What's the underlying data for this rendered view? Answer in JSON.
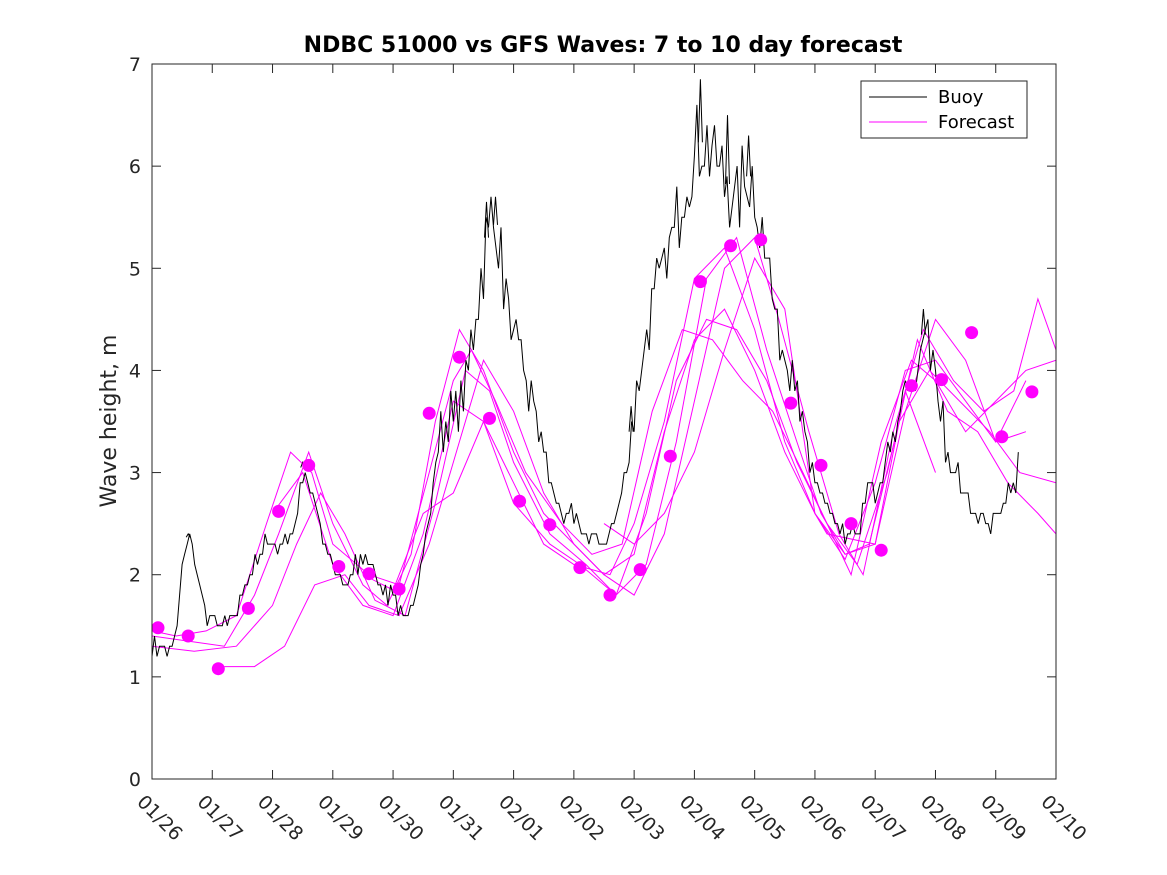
{
  "chart_data": {
    "type": "line",
    "title": "NDBC 51000 vs GFS Waves: 7 to 10 day forecast",
    "xlabel": "",
    "ylabel": "Wave height, m",
    "x_tick_labels": [
      "01/26",
      "01/27",
      "01/28",
      "01/29",
      "01/30",
      "01/31",
      "02/01",
      "02/02",
      "02/03",
      "02/04",
      "02/05",
      "02/06",
      "02/07",
      "02/08",
      "02/09",
      "02/10"
    ],
    "xlim_days": [
      0,
      15
    ],
    "ylim": [
      0,
      7
    ],
    "y_ticks": [
      0,
      1,
      2,
      3,
      4,
      5,
      6,
      7
    ],
    "legend": [
      "Buoy",
      "Forecast"
    ],
    "legend_position": "top-right",
    "colors": {
      "buoy": "#000000",
      "forecast": "#ff00ff"
    },
    "buoy_anchors": [
      [
        0.0,
        1.3
      ],
      [
        0.15,
        1.3
      ],
      [
        0.3,
        1.25
      ],
      [
        0.4,
        1.35
      ],
      [
        0.5,
        2.1
      ],
      [
        0.58,
        2.4
      ],
      [
        0.7,
        2.2
      ],
      [
        0.8,
        1.8
      ],
      [
        0.9,
        1.6
      ],
      [
        1.0,
        1.6
      ],
      [
        1.1,
        1.45
      ],
      [
        1.2,
        1.55
      ],
      [
        1.35,
        1.6
      ],
      [
        1.5,
        1.8
      ],
      [
        1.7,
        2.1
      ],
      [
        1.9,
        2.35
      ],
      [
        2.0,
        2.3
      ],
      [
        2.1,
        2.3
      ],
      [
        2.2,
        2.25
      ],
      [
        2.4,
        2.6
      ],
      [
        2.5,
        3.05
      ],
      [
        2.65,
        2.8
      ],
      [
        2.8,
        2.4
      ],
      [
        3.0,
        2.05
      ],
      [
        3.2,
        1.9
      ],
      [
        3.4,
        2.1
      ],
      [
        3.6,
        2.2
      ],
      [
        3.8,
        1.85
      ],
      [
        4.0,
        1.75
      ],
      [
        4.1,
        1.6
      ],
      [
        4.25,
        1.65
      ],
      [
        4.4,
        1.9
      ],
      [
        4.6,
        2.5
      ],
      [
        4.75,
        3.3
      ],
      [
        4.9,
        3.5
      ],
      [
        5.05,
        3.6
      ],
      [
        5.2,
        3.8
      ],
      [
        5.3,
        4.3
      ],
      [
        5.45,
        4.8
      ],
      [
        5.55,
        5.3
      ],
      [
        5.65,
        5.55
      ],
      [
        5.75,
        5.3
      ],
      [
        5.9,
        4.6
      ],
      [
        6.05,
        4.2
      ],
      [
        6.2,
        3.9
      ],
      [
        6.4,
        3.5
      ],
      [
        6.6,
        2.9
      ],
      [
        6.8,
        2.6
      ],
      [
        7.0,
        2.5
      ],
      [
        7.2,
        2.4
      ],
      [
        7.4,
        2.3
      ],
      [
        7.6,
        2.4
      ],
      [
        7.8,
        2.8
      ],
      [
        7.95,
        3.4
      ],
      [
        8.1,
        4.0
      ],
      [
        8.3,
        4.6
      ],
      [
        8.5,
        5.0
      ],
      [
        8.7,
        5.4
      ],
      [
        8.85,
        5.9
      ],
      [
        9.0,
        6.1
      ],
      [
        9.15,
        6.3
      ],
      [
        9.3,
        6.1
      ],
      [
        9.5,
        5.9
      ],
      [
        9.7,
        5.6
      ],
      [
        9.85,
        5.95
      ],
      [
        10.0,
        5.8
      ],
      [
        10.15,
        5.2
      ],
      [
        10.3,
        4.8
      ],
      [
        10.5,
        4.2
      ],
      [
        10.7,
        3.7
      ],
      [
        10.9,
        3.1
      ],
      [
        11.1,
        2.8
      ],
      [
        11.3,
        2.5
      ],
      [
        11.45,
        2.35
      ],
      [
        11.6,
        2.4
      ],
      [
        11.75,
        2.45
      ],
      [
        11.9,
        2.85
      ],
      [
        12.05,
        2.8
      ],
      [
        12.2,
        3.1
      ],
      [
        12.35,
        3.4
      ],
      [
        12.5,
        3.8
      ],
      [
        12.65,
        3.9
      ],
      [
        12.8,
        4.35
      ],
      [
        12.95,
        4.1
      ],
      [
        13.1,
        3.6
      ],
      [
        13.25,
        3.1
      ],
      [
        13.4,
        2.9
      ],
      [
        13.55,
        2.7
      ],
      [
        13.7,
        2.55
      ],
      [
        13.85,
        2.5
      ],
      [
        14.0,
        2.5
      ],
      [
        14.15,
        2.65
      ],
      [
        14.3,
        2.95
      ],
      [
        14.4,
        3.15
      ]
    ],
    "buoy_peak_spikes": [
      [
        5.55,
        5.65
      ],
      [
        5.7,
        5.7
      ],
      [
        9.1,
        6.85
      ],
      [
        9.55,
        6.5
      ],
      [
        9.9,
        6.3
      ],
      [
        12.8,
        4.6
      ],
      [
        7.95,
        3.65
      ],
      [
        0.6,
        2.4
      ],
      [
        2.5,
        3.1
      ]
    ],
    "forecast_lines": [
      [
        [
          0.0,
          1.45
        ],
        [
          0.4,
          1.4
        ],
        [
          0.9,
          1.45
        ],
        [
          1.4,
          1.6
        ],
        [
          1.9,
          2.5
        ],
        [
          2.3,
          3.2
        ],
        [
          2.65,
          3.0
        ],
        [
          3.0,
          2.3
        ],
        [
          3.6,
          2.0
        ],
        [
          4.1,
          1.9
        ],
        [
          4.6,
          3.0
        ],
        [
          5.0,
          3.9
        ],
        [
          5.3,
          4.2
        ],
        [
          5.7,
          3.7
        ],
        [
          6.2,
          3.0
        ],
        [
          6.8,
          2.5
        ],
        [
          7.3,
          2.2
        ],
        [
          7.8,
          2.3
        ],
        [
          8.3,
          3.6
        ],
        [
          8.8,
          4.4
        ],
        [
          9.3,
          4.3
        ],
        [
          9.8,
          3.9
        ],
        [
          10.3,
          3.6
        ],
        [
          10.8,
          3.0
        ],
        [
          11.2,
          2.5
        ],
        [
          11.6,
          2.0
        ],
        [
          12.1,
          3.3
        ],
        [
          12.6,
          4.1
        ],
        [
          13.0,
          3.9
        ],
        [
          13.5,
          3.4
        ],
        [
          14.0,
          3.7
        ],
        [
          14.5,
          4.0
        ],
        [
          15.0,
          4.1
        ]
      ],
      [
        [
          0.0,
          1.4
        ],
        [
          0.6,
          1.35
        ],
        [
          1.2,
          1.3
        ],
        [
          1.7,
          1.8
        ],
        [
          2.1,
          2.4
        ],
        [
          2.6,
          3.2
        ],
        [
          3.0,
          2.5
        ],
        [
          3.5,
          1.9
        ],
        [
          3.9,
          1.7
        ],
        [
          4.3,
          2.2
        ],
        [
          4.7,
          3.5
        ],
        [
          5.1,
          4.4
        ],
        [
          5.5,
          4.0
        ],
        [
          6.0,
          3.2
        ],
        [
          6.5,
          2.6
        ],
        [
          7.0,
          2.3
        ],
        [
          7.5,
          2.0
        ],
        [
          8.0,
          2.2
        ],
        [
          8.5,
          3.4
        ],
        [
          9.0,
          4.3
        ],
        [
          9.5,
          4.6
        ],
        [
          10.0,
          4.0
        ],
        [
          10.5,
          3.2
        ],
        [
          11.0,
          2.6
        ],
        [
          11.5,
          2.15
        ],
        [
          12.0,
          2.9
        ],
        [
          12.5,
          4.0
        ],
        [
          13.0,
          4.1
        ],
        [
          13.5,
          3.7
        ],
        [
          14.0,
          3.3
        ],
        [
          14.5,
          3.9
        ]
      ],
      [
        [
          0.0,
          1.3
        ],
        [
          0.7,
          1.25
        ],
        [
          1.4,
          1.3
        ],
        [
          2.0,
          1.7
        ],
        [
          2.4,
          2.3
        ],
        [
          2.8,
          2.8
        ],
        [
          3.2,
          2.4
        ],
        [
          3.7,
          1.75
        ],
        [
          4.2,
          1.6
        ],
        [
          4.7,
          2.7
        ],
        [
          5.2,
          4.0
        ],
        [
          5.6,
          3.8
        ],
        [
          6.0,
          3.1
        ],
        [
          6.6,
          2.4
        ],
        [
          7.2,
          2.1
        ],
        [
          7.7,
          1.8
        ],
        [
          8.2,
          2.6
        ],
        [
          8.7,
          3.9
        ],
        [
          9.2,
          4.5
        ],
        [
          9.7,
          4.4
        ],
        [
          10.2,
          3.9
        ],
        [
          10.7,
          3.1
        ],
        [
          11.2,
          2.5
        ],
        [
          11.7,
          2.1
        ],
        [
          12.2,
          3.0
        ],
        [
          12.7,
          4.3
        ],
        [
          13.2,
          3.6
        ],
        [
          13.7,
          3.4
        ],
        [
          14.2,
          2.9
        ],
        [
          14.7,
          2.6
        ],
        [
          15.0,
          2.4
        ]
      ],
      [
        [
          1.2,
          1.1
        ],
        [
          1.7,
          1.1
        ],
        [
          2.2,
          1.3
        ],
        [
          2.7,
          1.9
        ],
        [
          3.2,
          2.0
        ],
        [
          3.6,
          1.7
        ],
        [
          4.1,
          1.6
        ],
        [
          4.6,
          2.3
        ],
        [
          5.0,
          3.1
        ],
        [
          5.5,
          4.1
        ],
        [
          6.0,
          3.6
        ],
        [
          6.5,
          2.8
        ],
        [
          7.0,
          2.3
        ],
        [
          7.5,
          2.0
        ],
        [
          8.0,
          1.8
        ],
        [
          8.5,
          2.4
        ],
        [
          9.0,
          3.7
        ],
        [
          9.5,
          5.0
        ],
        [
          10.0,
          5.3
        ],
        [
          10.4,
          4.5
        ],
        [
          10.9,
          3.4
        ],
        [
          11.4,
          2.4
        ],
        [
          11.8,
          2.0
        ],
        [
          12.3,
          3.4
        ],
        [
          12.8,
          4.4
        ],
        [
          13.3,
          3.9
        ],
        [
          13.8,
          3.6
        ],
        [
          14.3,
          3.8
        ],
        [
          14.7,
          4.7
        ],
        [
          15.0,
          4.2
        ]
      ],
      [
        [
          2.0,
          2.6
        ],
        [
          2.5,
          3.0
        ],
        [
          3.0,
          2.1
        ],
        [
          3.5,
          1.7
        ],
        [
          4.0,
          1.6
        ],
        [
          4.5,
          2.4
        ],
        [
          5.0,
          3.7
        ],
        [
          5.5,
          3.5
        ],
        [
          6.0,
          2.9
        ],
        [
          6.5,
          2.3
        ],
        [
          7.0,
          2.1
        ],
        [
          7.6,
          2.0
        ],
        [
          8.0,
          2.5
        ],
        [
          8.5,
          3.5
        ],
        [
          9.0,
          4.9
        ],
        [
          9.5,
          5.2
        ],
        [
          10.0,
          4.4
        ],
        [
          10.5,
          3.3
        ],
        [
          11.0,
          2.6
        ],
        [
          11.5,
          2.2
        ],
        [
          11.9,
          2.3
        ],
        [
          12.4,
          3.5
        ],
        [
          12.9,
          4.0
        ],
        [
          13.4,
          3.7
        ],
        [
          13.9,
          3.4
        ],
        [
          14.4,
          3.0
        ],
        [
          15.0,
          2.9
        ]
      ],
      [
        [
          3.5,
          2.0
        ],
        [
          4.0,
          1.85
        ],
        [
          4.5,
          2.6
        ],
        [
          5.0,
          2.8
        ],
        [
          5.5,
          3.5
        ],
        [
          6.0,
          2.7
        ],
        [
          6.6,
          2.3
        ],
        [
          7.1,
          2.1
        ],
        [
          7.7,
          1.8
        ],
        [
          8.2,
          2.1
        ],
        [
          8.7,
          3.3
        ],
        [
          9.2,
          4.9
        ],
        [
          9.7,
          5.3
        ],
        [
          10.2,
          4.2
        ],
        [
          10.7,
          3.3
        ],
        [
          11.1,
          2.6
        ],
        [
          11.5,
          2.2
        ],
        [
          12.0,
          2.3
        ],
        [
          12.5,
          3.8
        ],
        [
          13.0,
          3.0
        ]
      ],
      [
        [
          7.5,
          2.5
        ],
        [
          8.0,
          2.3
        ],
        [
          8.5,
          2.6
        ],
        [
          9.0,
          3.2
        ],
        [
          9.5,
          4.2
        ],
        [
          10.0,
          5.1
        ],
        [
          10.5,
          4.6
        ],
        [
          11.0,
          2.6
        ],
        [
          11.2,
          2.4
        ],
        [
          12.0,
          2.3
        ],
        [
          12.5,
          3.6
        ],
        [
          13.0,
          4.5
        ],
        [
          13.5,
          4.1
        ],
        [
          14.0,
          3.3
        ],
        [
          14.5,
          3.4
        ]
      ]
    ],
    "forecast_markers": [
      [
        0.1,
        1.48
      ],
      [
        0.6,
        1.4
      ],
      [
        1.1,
        1.08
      ],
      [
        1.6,
        1.67
      ],
      [
        2.1,
        2.62
      ],
      [
        2.6,
        3.07
      ],
      [
        3.1,
        2.08
      ],
      [
        3.6,
        2.01
      ],
      [
        4.1,
        1.86
      ],
      [
        4.6,
        3.58
      ],
      [
        5.1,
        4.13
      ],
      [
        5.6,
        3.53
      ],
      [
        6.1,
        2.72
      ],
      [
        6.6,
        2.49
      ],
      [
        7.1,
        2.07
      ],
      [
        7.6,
        1.8
      ],
      [
        8.1,
        2.05
      ],
      [
        8.6,
        3.16
      ],
      [
        9.1,
        4.87
      ],
      [
        9.6,
        5.22
      ],
      [
        10.1,
        5.28
      ],
      [
        10.6,
        3.68
      ],
      [
        11.1,
        3.07
      ],
      [
        11.6,
        2.5
      ],
      [
        12.1,
        2.24
      ],
      [
        12.6,
        3.85
      ],
      [
        13.1,
        3.91
      ],
      [
        13.6,
        4.37
      ],
      [
        14.1,
        3.35
      ],
      [
        14.6,
        3.79
      ]
    ]
  }
}
